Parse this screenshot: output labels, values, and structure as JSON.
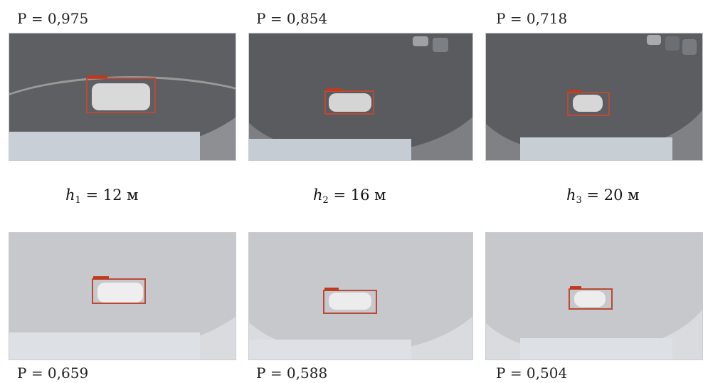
{
  "top_row": [
    {
      "probability": "P = 0,975",
      "tag": "car 97,5%"
    },
    {
      "probability": "P = 0,854",
      "tag": "car 85,4%"
    },
    {
      "probability": "P = 0,718",
      "tag": "car 71,8%"
    }
  ],
  "heights": [
    {
      "symbol": "h",
      "sub": "1",
      "rest": " = 12 м"
    },
    {
      "symbol": "h",
      "sub": "2",
      "rest": " = 16 м"
    },
    {
      "symbol": "h",
      "sub": "3",
      "rest": " = 20 м"
    }
  ],
  "bottom_row": [
    {
      "probability": "P = 0,659",
      "tag": "car 65,9%"
    },
    {
      "probability": "P = 0,588",
      "tag": "car 58,8%"
    },
    {
      "probability": "P = 0,504",
      "tag": "car 50,4%"
    }
  ],
  "colors": {
    "bbox": "#b94a35",
    "road_clear": "#6f7072",
    "road_foggy": "#c6c8cc"
  }
}
